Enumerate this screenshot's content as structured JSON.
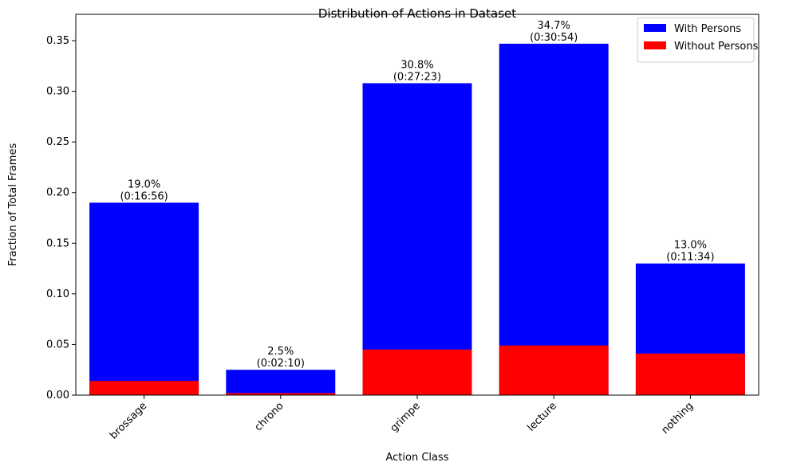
{
  "chart_data": {
    "type": "bar",
    "title": "Distribution of Actions in Dataset",
    "x_label": "Action Class",
    "y_label": "Fraction of Total Frames",
    "categories": [
      "brossage",
      "chrono",
      "grimpe",
      "lecture",
      "nothing"
    ],
    "series": [
      {
        "name": "With Persons",
        "color": "#0000ff",
        "values": [
          0.19,
          0.025,
          0.308,
          0.347,
          0.13
        ],
        "value_labels": [
          "19.0%\n(0:16:56)",
          "2.5%\n(0:02:10)",
          "30.8%\n(0:27:23)",
          "34.7%\n(0:30:54)",
          "13.0%\n(0:11:34)"
        ]
      },
      {
        "name": "Without Persons",
        "color": "#ff0000",
        "values": [
          0.014,
          0.002,
          0.045,
          0.049,
          0.041
        ]
      }
    ],
    "ylim": [
      0,
      0.376
    ],
    "yticks": [
      {
        "value": 0,
        "label": "0.00"
      },
      {
        "value": 0.05,
        "label": "0.05"
      },
      {
        "value": 0.1,
        "label": "0.10"
      },
      {
        "value": 0.15,
        "label": "0.15"
      },
      {
        "value": 0.2,
        "label": "0.20"
      },
      {
        "value": 0.25,
        "label": "0.25"
      },
      {
        "value": 0.3,
        "label": "0.30"
      },
      {
        "value": 0.35,
        "label": "0.35"
      }
    ],
    "legend": "upper right"
  }
}
